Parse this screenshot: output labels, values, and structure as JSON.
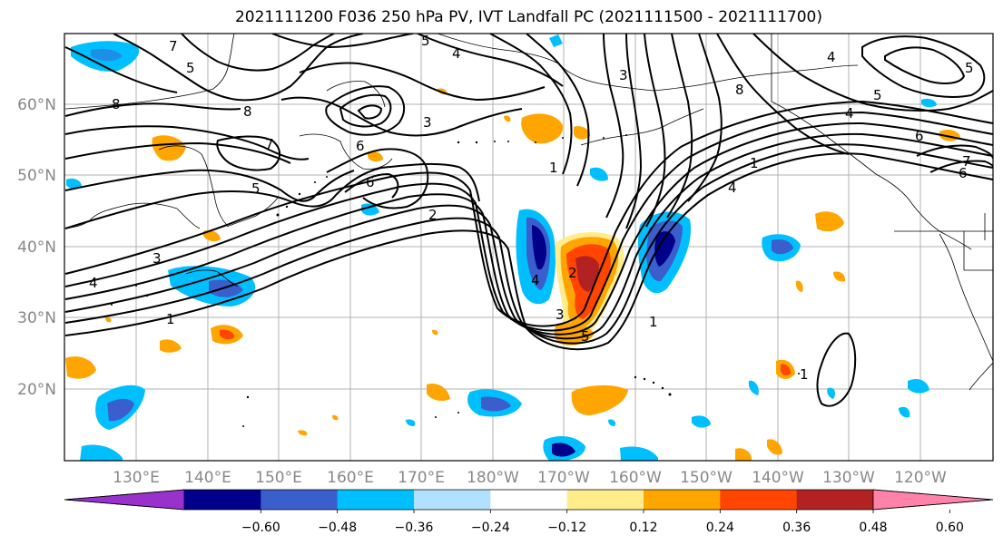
{
  "title": "2021111200 F036 250 hPa PV, IVT Landfall PC (2021111500 - 2021111700)",
  "map": {
    "lon_labels": [
      "130°E",
      "140°E",
      "150°E",
      "160°E",
      "170°E",
      "180°W",
      "170°W",
      "160°W",
      "150°W",
      "140°W",
      "130°W",
      "120°W"
    ],
    "lat_labels": [
      "60°N",
      "50°N",
      "40°N",
      "30°N",
      "20°N"
    ],
    "contour_labels": [
      "5",
      "4",
      "5",
      "7",
      "8",
      "8",
      "7",
      "6",
      "5",
      "3",
      "4",
      "1",
      "6",
      "3",
      "2",
      "3",
      "8",
      "1",
      "5",
      "4",
      "5",
      "4",
      "6",
      "7",
      "6",
      "1",
      "1",
      "4",
      "2",
      "3",
      "4",
      "5",
      "1"
    ]
  },
  "colorbar": {
    "ticks": [
      "−0.60",
      "−0.48",
      "−0.36",
      "−0.24",
      "−0.12",
      "0.12",
      "0.24",
      "0.36",
      "0.48",
      "0.60"
    ],
    "colors": [
      "#9932cc",
      "#00008b",
      "#3a5fcd",
      "#00bfff",
      "#b0e2ff",
      "#ffffff",
      "#ffec8b",
      "#ffa500",
      "#ff4500",
      "#b22222",
      "#ff82ab"
    ]
  }
}
